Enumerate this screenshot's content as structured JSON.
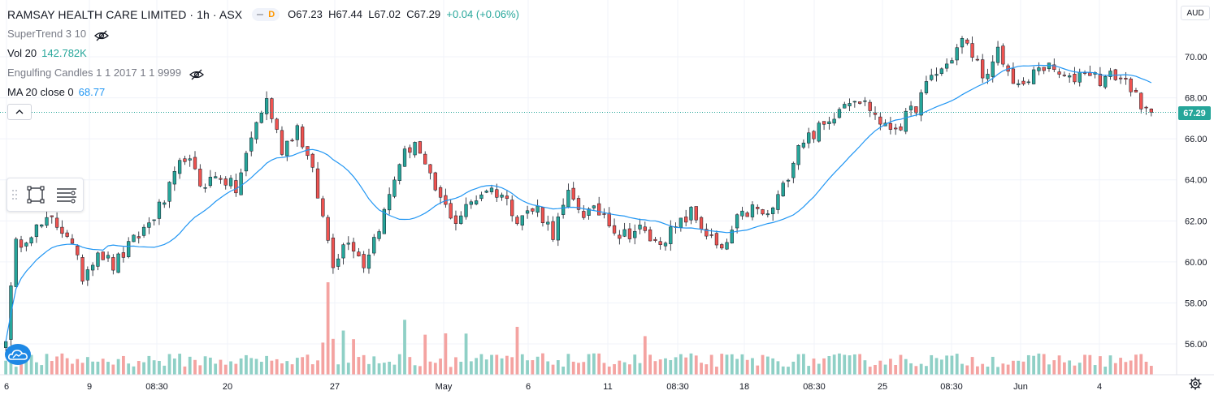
{
  "header": {
    "symbol": "RAMSAY HEALTH CARE LIMITED · 1h · ASX",
    "pill_letter": "D",
    "open": "O67.23",
    "high": "H67.44",
    "low": "L67.02",
    "close": "C67.29",
    "change": "+0.04 (+0.06%)"
  },
  "indicators": {
    "supertrend_label": "SuperTrend 3 10",
    "volume_label": "Vol 20",
    "volume_value": "142.782K",
    "engulfing_label": "Engulfing Candles 1 1 2017 1 1 9999",
    "ma_label": "MA 20 close 0",
    "ma_value": "68.77"
  },
  "price_axis": {
    "currency": "AUD",
    "last_price_label": "67.29",
    "last_price": 67.29,
    "ticks": [
      "70.00",
      "68.00",
      "66.00",
      "64.00",
      "62.00",
      "60.00",
      "58.00",
      "56.00"
    ]
  },
  "time_axis": {
    "labels": [
      "6",
      "9",
      "08:30",
      "20",
      "27",
      "May",
      "6",
      "11",
      "08:30",
      "18",
      "08:30",
      "25",
      "08:30",
      "Jun",
      "4"
    ]
  },
  "colors": {
    "up": "#26a69a",
    "down": "#ef5350",
    "ma": "#2196f3",
    "grid": "#f0f3fa",
    "vol_up": "#8fd0c6",
    "vol_down": "#f4a3a1"
  },
  "icons": {
    "eye_supertrend": "eye-off-icon",
    "eye_engulfing": "eye-off-icon",
    "collapse": "chevron-up-icon",
    "draw_rect": "rectangle-tool-icon",
    "draw_lines": "lines-tool-icon",
    "logo": "tradingview-cloud-icon",
    "settings": "gear-icon"
  },
  "chart_data": {
    "type": "candlestick",
    "title": "RAMSAY HEALTH CARE LIMITED · 1h · ASX",
    "ylabel": "",
    "xlabel": "",
    "ylim": [
      55.4,
      71.6
    ],
    "y_ticks": [
      56,
      58,
      60,
      62,
      64,
      66,
      68,
      70
    ],
    "grid": true,
    "ma_period": 20,
    "anchors": [
      [
        0,
        56.4
      ],
      [
        2,
        60.8
      ],
      [
        5,
        61.5
      ],
      [
        9,
        62.0
      ],
      [
        12,
        61.4
      ],
      [
        15,
        59.3
      ],
      [
        18,
        60.6
      ],
      [
        21,
        59.8
      ],
      [
        25,
        61.0
      ],
      [
        28,
        61.9
      ],
      [
        31,
        63.0
      ],
      [
        35,
        65.2
      ],
      [
        38,
        63.8
      ],
      [
        42,
        64.2
      ],
      [
        45,
        63.5
      ],
      [
        49,
        66.8
      ],
      [
        51,
        67.9
      ],
      [
        54,
        65.5
      ],
      [
        57,
        66.6
      ],
      [
        60,
        64.3
      ],
      [
        64,
        60.0
      ],
      [
        67,
        61.2
      ],
      [
        70,
        59.9
      ],
      [
        74,
        62.4
      ],
      [
        77,
        64.9
      ],
      [
        80,
        65.9
      ],
      [
        82,
        64.5
      ],
      [
        85,
        63.0
      ],
      [
        88,
        62.0
      ],
      [
        91,
        62.9
      ],
      [
        94,
        63.6
      ],
      [
        97,
        63.3
      ],
      [
        100,
        62.2
      ],
      [
        104,
        62.6
      ],
      [
        107,
        61.4
      ],
      [
        110,
        63.2
      ],
      [
        113,
        62.4
      ],
      [
        117,
        62.4
      ],
      [
        120,
        61.3
      ],
      [
        124,
        61.6
      ],
      [
        127,
        60.9
      ],
      [
        131,
        61.6
      ],
      [
        134,
        62.4
      ],
      [
        137,
        61.4
      ],
      [
        140,
        60.4
      ],
      [
        143,
        62.0
      ],
      [
        146,
        62.6
      ],
      [
        149,
        62.2
      ],
      [
        152,
        63.6
      ],
      [
        155,
        65.8
      ],
      [
        158,
        66.3
      ],
      [
        161,
        66.8
      ],
      [
        163,
        67.7
      ],
      [
        166,
        68.1
      ],
      [
        169,
        67.5
      ],
      [
        172,
        66.5
      ],
      [
        175,
        66.7
      ],
      [
        178,
        67.6
      ],
      [
        181,
        69.0
      ],
      [
        184,
        69.6
      ],
      [
        187,
        70.8
      ],
      [
        189,
        70.1
      ],
      [
        192,
        68.9
      ],
      [
        194,
        70.2
      ],
      [
        196,
        69.2
      ],
      [
        199,
        68.4
      ],
      [
        202,
        69.6
      ],
      [
        205,
        69.3
      ],
      [
        208,
        68.8
      ],
      [
        211,
        69.4
      ],
      [
        214,
        68.9
      ],
      [
        217,
        69.1
      ],
      [
        220,
        68.6
      ],
      [
        222,
        67.3
      ],
      [
        224,
        67.29
      ]
    ],
    "num_candles": 225,
    "volume_ylim": [
      0,
      500000
    ]
  }
}
